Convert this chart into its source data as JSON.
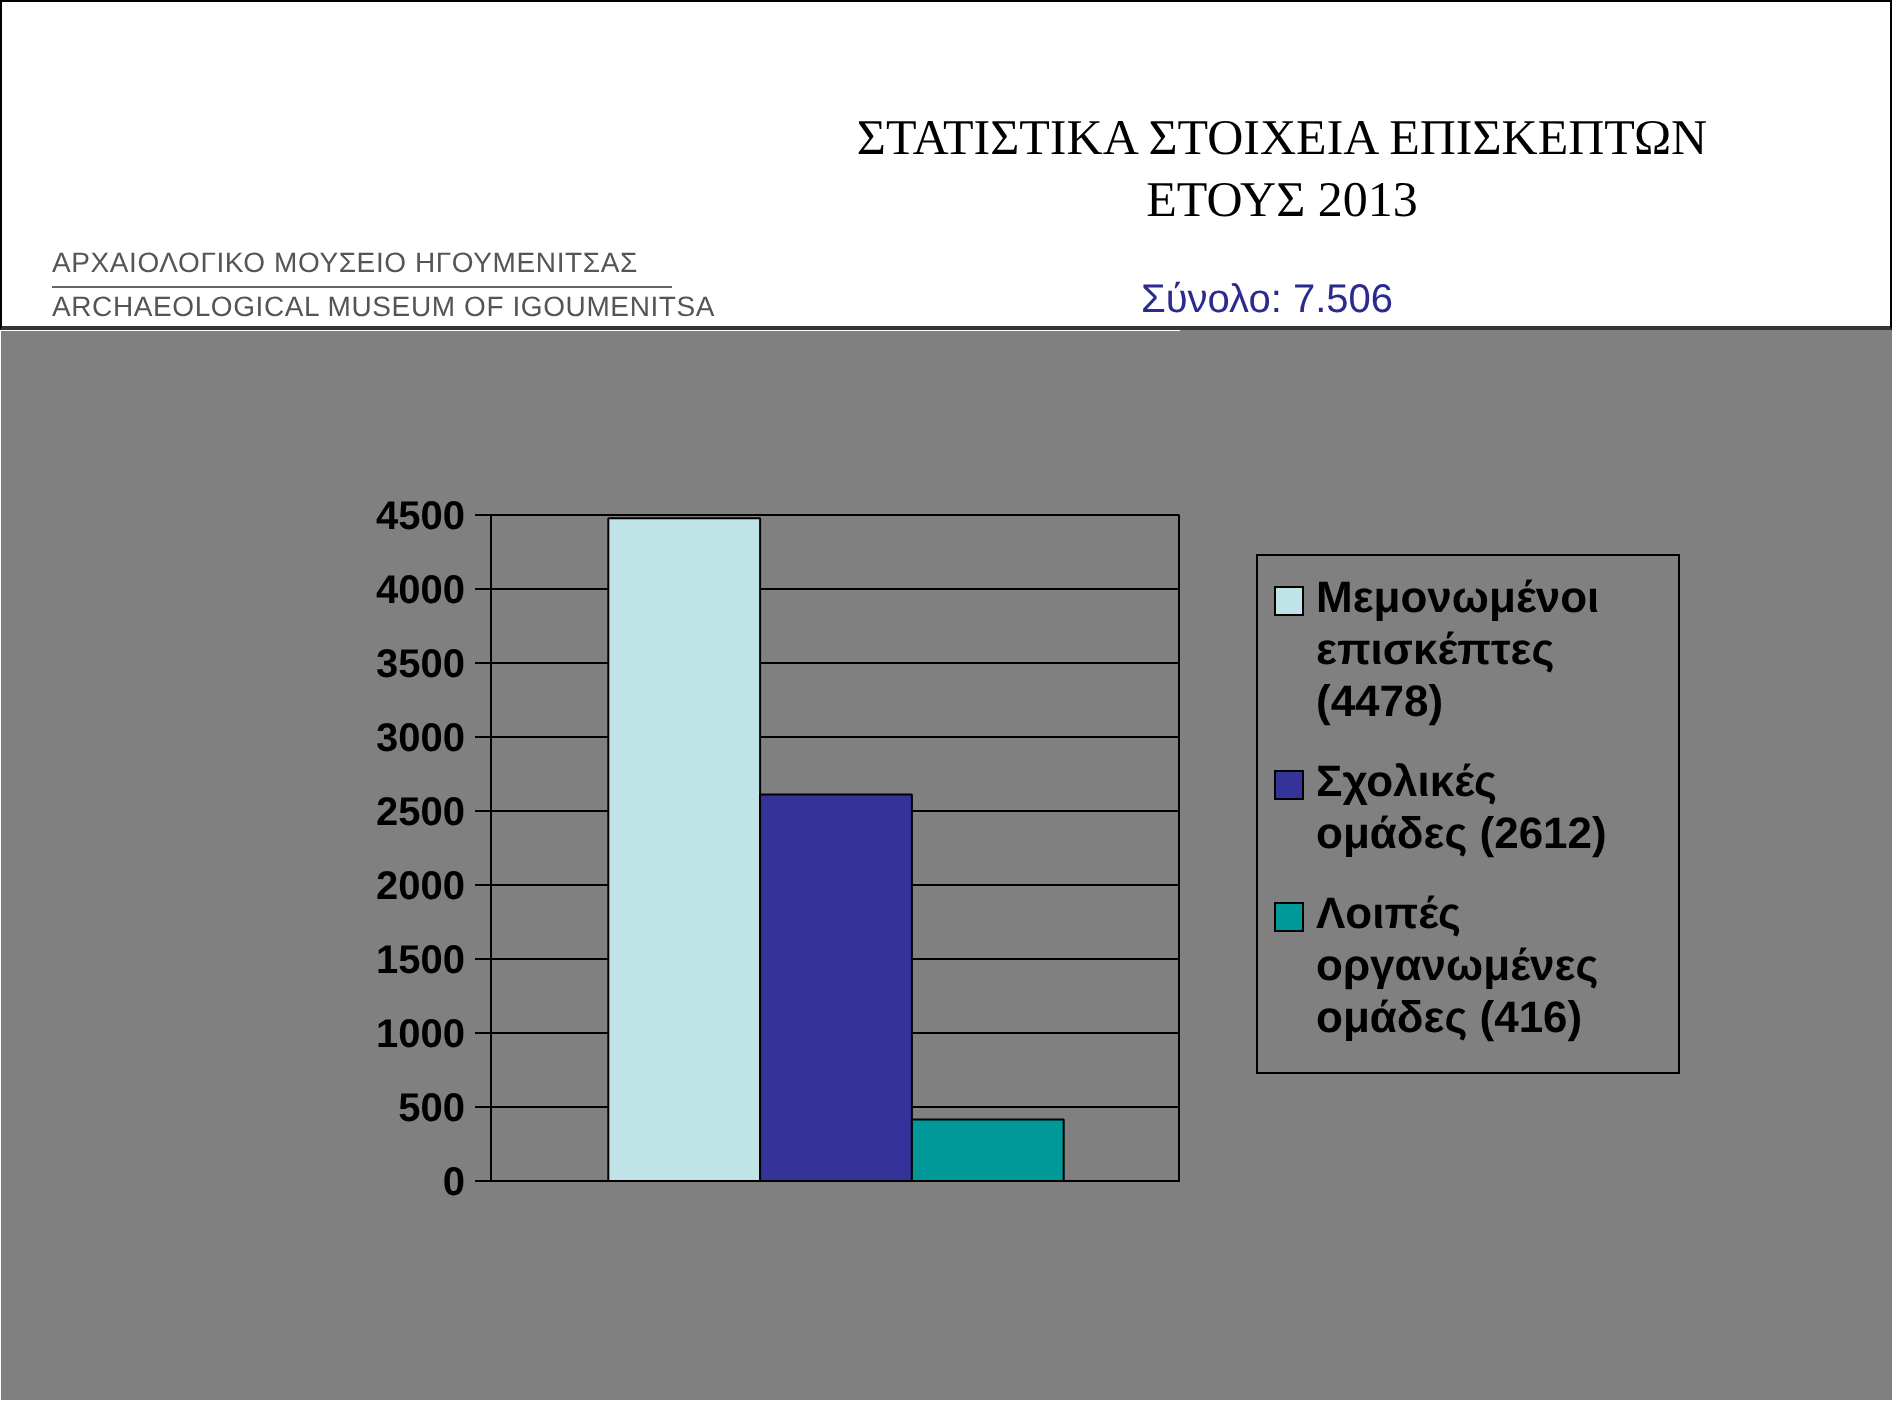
{
  "chart_data": {
    "type": "bar",
    "title": "ΣΤΑΤΙΣΤΙΚΑ ΣΤΟΙΧΕΙΑ ΕΠΙΣΚΕΠΤΩΝ ΕΤΟΥΣ 2013",
    "subtitle": "Σύνολο: 7.506",
    "annotations": [
      "ΑΡΧΑΙΟΛΟΓΙΚΟ ΜΟΥΣΕΙΟ ΗΓΟΥΜΕΝΙΤΣΑΣ",
      "ARCHAEOLOGICAL MUSEUM OF IGOUMENITSA"
    ],
    "categories": [
      null
    ],
    "series": [
      {
        "name": "Μεμονωμένοι επισκέπτες (4478)",
        "color": "#bfe3e6",
        "values": [
          4478
        ]
      },
      {
        "name": "Σχολικές ομάδες (2612)",
        "color": "#333399",
        "values": [
          2612
        ]
      },
      {
        "name": "Λοιπές οργανωμένες ομάδες (416)",
        "color": "#009999",
        "values": [
          416
        ]
      }
    ],
    "ylim": [
      0,
      4500
    ],
    "yticks": [
      0,
      500,
      1000,
      1500,
      2000,
      2500,
      3000,
      3500,
      4000,
      4500
    ],
    "grid": "y",
    "legend": "right",
    "tick_labels": "y"
  }
}
